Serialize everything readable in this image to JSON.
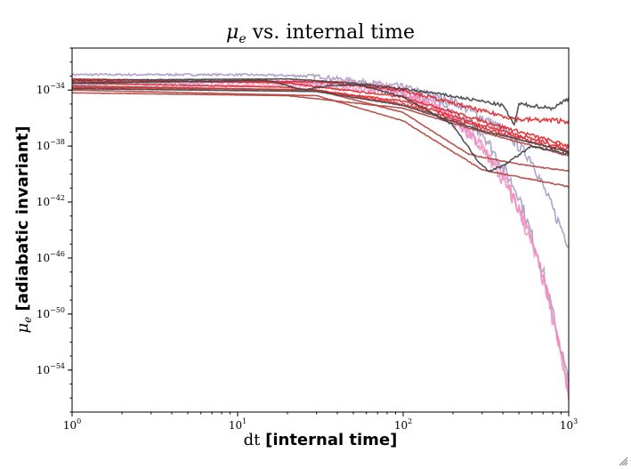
{
  "chart_data": {
    "type": "line",
    "title_symbol": "μ",
    "title_sub": "e",
    "title_rest": " vs. internal time",
    "xlabel_prefix": "dt ",
    "xlabel_bold": "[internal time]",
    "ylabel_symbol": "μ",
    "ylabel_sub": "e",
    "ylabel_bold": " [adiabatic invariant]",
    "x_scale": "log",
    "y_scale": "log",
    "xlim": [
      1,
      1000
    ],
    "ylim": [
      1e-57,
      1e-31
    ],
    "x_ticks": [
      {
        "base": "10",
        "exp": "0",
        "value": 1
      },
      {
        "base": "10",
        "exp": "1",
        "value": 10
      },
      {
        "base": "10",
        "exp": "2",
        "value": 100
      },
      {
        "base": "10",
        "exp": "3",
        "value": 1000
      }
    ],
    "y_ticks": [
      {
        "base": "10",
        "exp": "−34",
        "value": 1e-34
      },
      {
        "base": "10",
        "exp": "−38",
        "value": 1e-38
      },
      {
        "base": "10",
        "exp": "−42",
        "value": 1e-42
      },
      {
        "base": "10",
        "exp": "−46",
        "value": 1e-46
      },
      {
        "base": "10",
        "exp": "−50",
        "value": 1e-50
      },
      {
        "base": "10",
        "exp": "−54",
        "value": 1e-54
      }
    ],
    "grid": false,
    "legend": "none",
    "colors": {
      "lavender": "#a49ac2",
      "pink": "#ef8fc0",
      "red": "#e0262b",
      "darkred": "#b0433e",
      "gray": "#404040"
    },
    "series": [
      {
        "color": "#a49ac2",
        "noise": 0.5,
        "points": [
          [
            1,
            -32.9
          ],
          [
            10,
            -32.9
          ],
          [
            30,
            -33
          ],
          [
            100,
            -33.8
          ],
          [
            200,
            -34.8
          ],
          [
            400,
            -36.8
          ],
          [
            600,
            -39
          ],
          [
            800,
            -42.5
          ],
          [
            1000,
            -45
          ]
        ]
      },
      {
        "color": "#a49ac2",
        "noise": 0.6,
        "points": [
          [
            1,
            -33.6
          ],
          [
            20,
            -33.4
          ],
          [
            60,
            -33.6
          ],
          [
            150,
            -34.7
          ],
          [
            300,
            -37
          ],
          [
            500,
            -41.5
          ],
          [
            700,
            -47
          ],
          [
            900,
            -52.5
          ],
          [
            1000,
            -55
          ]
        ]
      },
      {
        "color": "#ef8fc0",
        "noise": 0.6,
        "points": [
          [
            1,
            -33.3
          ],
          [
            10,
            -33.3
          ],
          [
            50,
            -33.5
          ],
          [
            100,
            -34
          ],
          [
            200,
            -35.8
          ],
          [
            400,
            -40
          ],
          [
            600,
            -44.5
          ],
          [
            800,
            -50
          ],
          [
            1000,
            -55.5
          ]
        ]
      },
      {
        "color": "#ef8fc0",
        "noise": 0.7,
        "points": [
          [
            1,
            -33.9
          ],
          [
            20,
            -33.6
          ],
          [
            80,
            -34
          ],
          [
            150,
            -35
          ],
          [
            300,
            -38
          ],
          [
            500,
            -42.5
          ],
          [
            700,
            -47.5
          ],
          [
            900,
            -53
          ],
          [
            1000,
            -56.2
          ]
        ]
      },
      {
        "color": "#e0262b",
        "noise": 0.15,
        "points": [
          [
            1,
            -33.2
          ],
          [
            20,
            -33.5
          ],
          [
            100,
            -34.5
          ],
          [
            300,
            -36.2
          ],
          [
            1000,
            -38
          ]
        ]
      },
      {
        "color": "#e0262b",
        "noise": 0.15,
        "points": [
          [
            1,
            -33.5
          ],
          [
            20,
            -33.8
          ],
          [
            100,
            -34.8
          ],
          [
            300,
            -36.5
          ],
          [
            1000,
            -38.2
          ]
        ]
      },
      {
        "color": "#e0262b",
        "noise": 0.15,
        "points": [
          [
            1,
            -33.8
          ],
          [
            30,
            -34
          ],
          [
            100,
            -35
          ],
          [
            300,
            -36.7
          ],
          [
            1000,
            -38.4
          ]
        ]
      },
      {
        "color": "#e0262b",
        "noise": 0.2,
        "points": [
          [
            1,
            -33.4
          ],
          [
            30,
            -33.4
          ],
          [
            100,
            -34
          ],
          [
            300,
            -35.5
          ],
          [
            500,
            -36.1
          ],
          [
            1000,
            -36.2
          ]
        ]
      },
      {
        "color": "#b0433e",
        "noise": 0.05,
        "points": [
          [
            1,
            -34.2
          ],
          [
            20,
            -34.4
          ],
          [
            100,
            -35.3
          ],
          [
            300,
            -37
          ],
          [
            1000,
            -38.7
          ]
        ]
      },
      {
        "color": "#b0433e",
        "noise": 0.05,
        "points": [
          [
            1,
            -33.7
          ],
          [
            30,
            -34
          ],
          [
            100,
            -35.6
          ],
          [
            250,
            -38.6
          ],
          [
            500,
            -39.3
          ],
          [
            1000,
            -39.8
          ]
        ]
      },
      {
        "color": "#b0433e",
        "noise": 0.05,
        "points": [
          [
            1,
            -34
          ],
          [
            30,
            -34.4
          ],
          [
            100,
            -36.2
          ],
          [
            300,
            -39.7
          ],
          [
            1000,
            -40.9
          ]
        ]
      },
      {
        "color": "#404040",
        "noise": 0.1,
        "points": [
          [
            1,
            -33.3
          ],
          [
            20,
            -33.2
          ],
          [
            50,
            -33.5
          ],
          [
            100,
            -34.5
          ],
          [
            200,
            -36.5
          ],
          [
            280,
            -39
          ],
          [
            330,
            -39.8
          ],
          [
            400,
            -39.4
          ],
          [
            600,
            -38
          ],
          [
            1000,
            -38.6
          ]
        ]
      },
      {
        "color": "#404040",
        "noise": 0.15,
        "points": [
          [
            1,
            -33.5
          ],
          [
            15,
            -33.3
          ],
          [
            25,
            -34
          ],
          [
            35,
            -33.7
          ],
          [
            60,
            -33.6
          ],
          [
            150,
            -34.2
          ],
          [
            300,
            -34.8
          ],
          [
            400,
            -35.1
          ],
          [
            470,
            -36.5
          ],
          [
            500,
            -35
          ],
          [
            800,
            -35.3
          ],
          [
            1000,
            -34.6
          ]
        ]
      },
      {
        "color": "#404040",
        "noise": 0.05,
        "points": [
          [
            1,
            -33.9
          ],
          [
            30,
            -34.1
          ],
          [
            100,
            -35.1
          ],
          [
            300,
            -36.9
          ],
          [
            1000,
            -38.4
          ]
        ]
      }
    ]
  }
}
